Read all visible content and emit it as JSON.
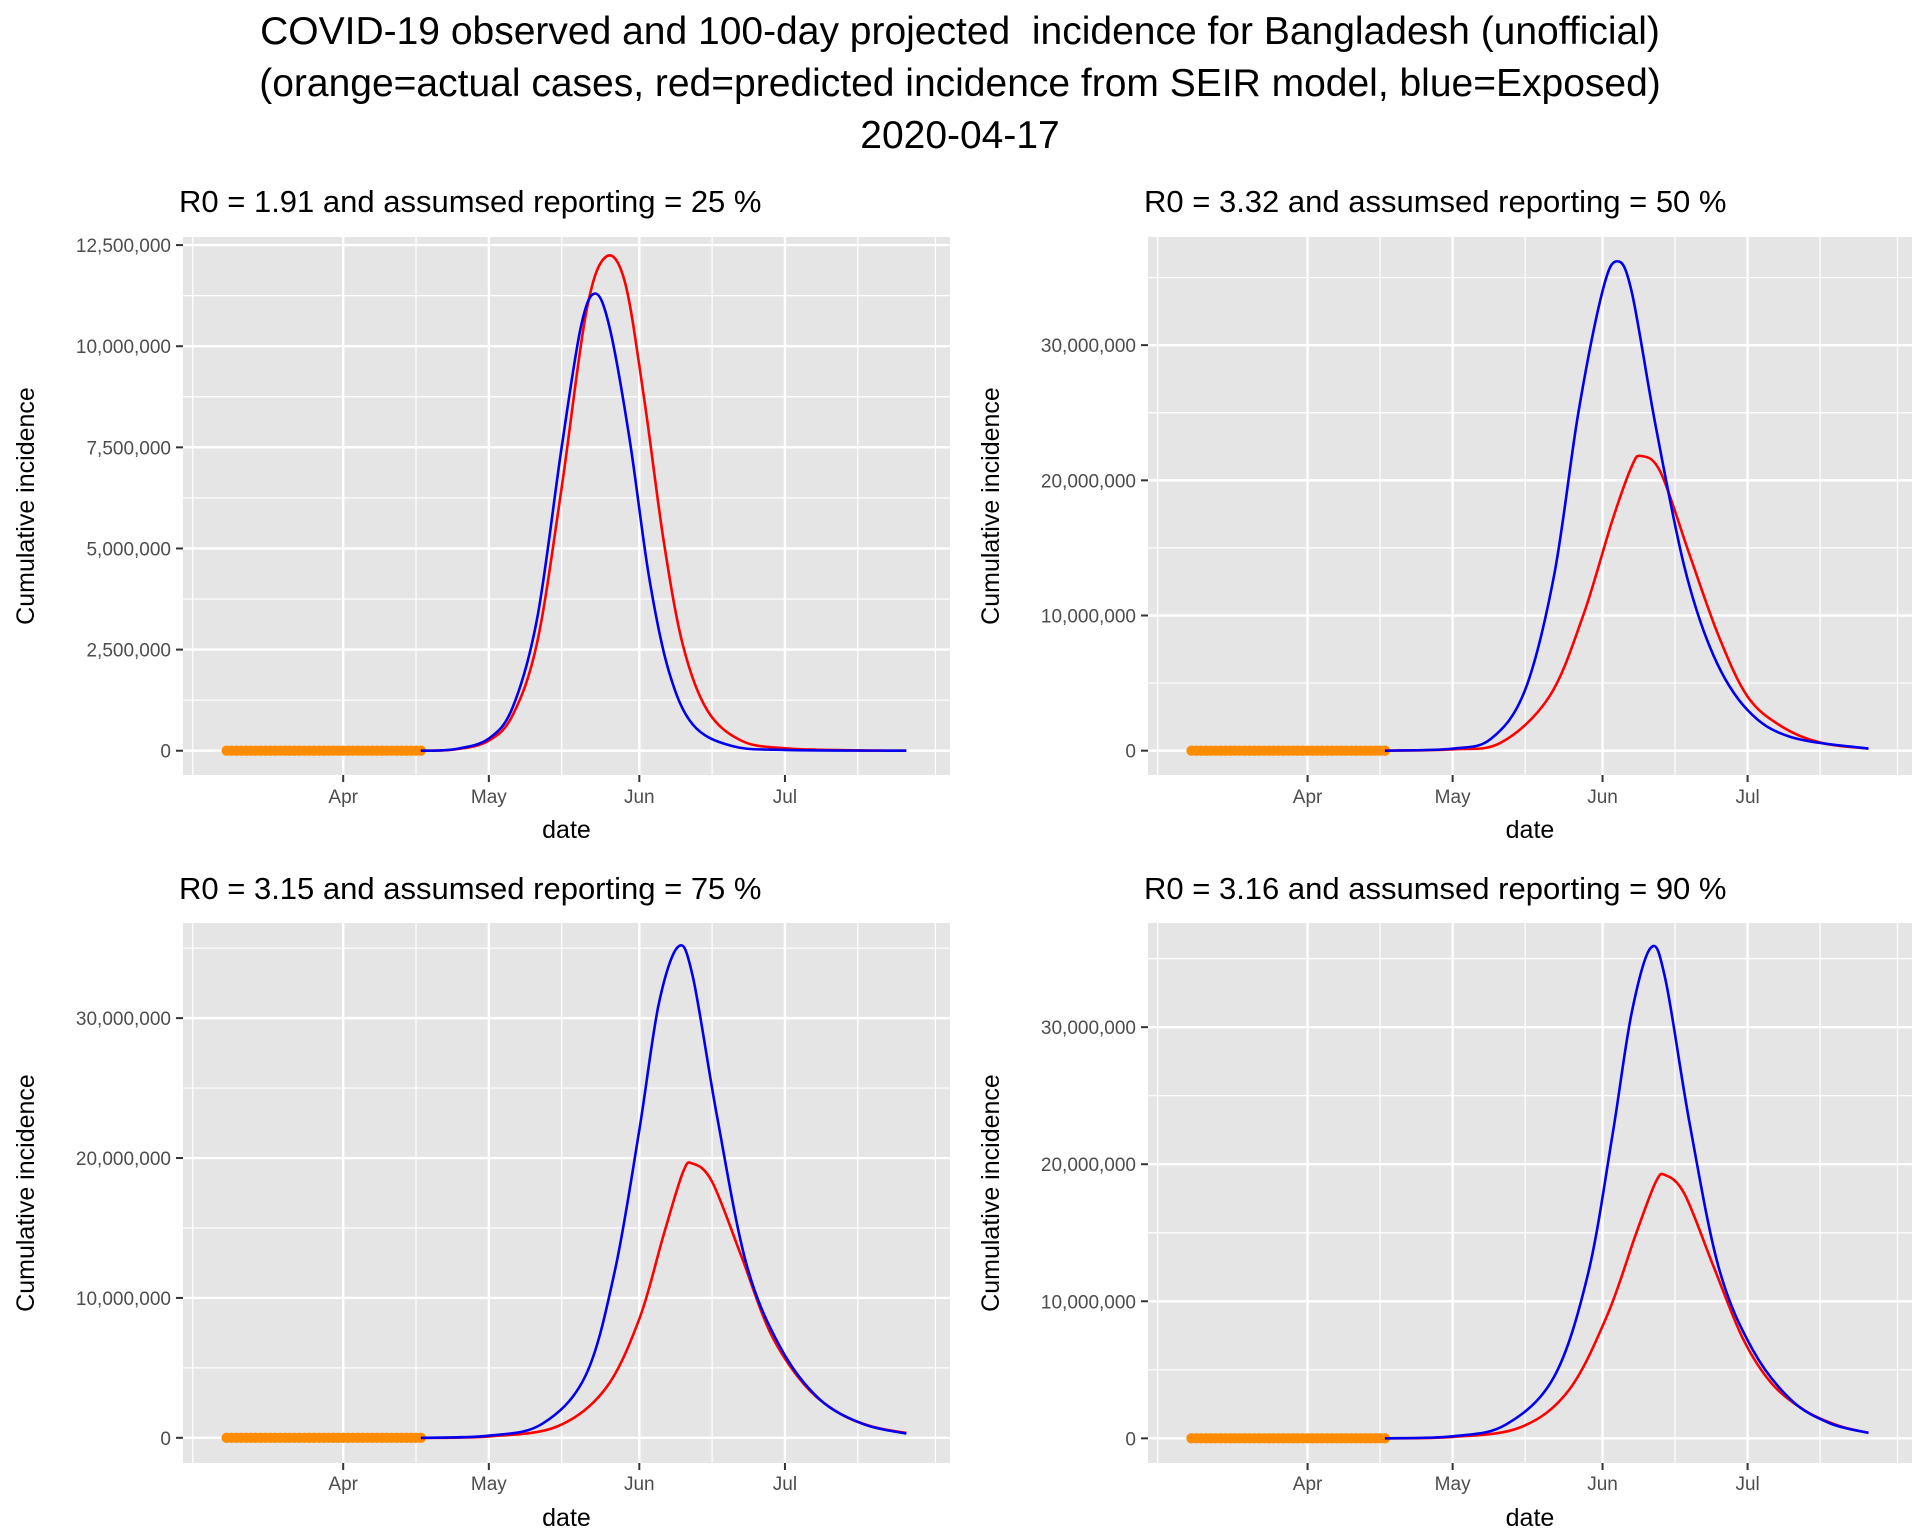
{
  "title_lines": [
    "COVID-19 observed and 100-day projected  incidence for Bangladesh (unofficial)",
    "(orange=actual cases, red=predicted incidence from SEIR model, blue=Exposed)",
    "2020-04-17"
  ],
  "colors": {
    "observed": "#FF8C00",
    "predicted": "#FF0000",
    "exposed": "#0000EE",
    "panel_bg": "#E5E5E5",
    "grid": "#FFFFFF"
  },
  "chart_data": [
    {
      "type": "line",
      "title": "R0 = 1.91 and assumsed reporting = 25 %",
      "xlabel": "date",
      "ylabel": "Cumulative incidence",
      "x_ticks": [
        "Apr",
        "May",
        "Jun",
        "Jul"
      ],
      "y_ticks": [
        "0",
        "2,500,000",
        "5,000,000",
        "7,500,000",
        "10,000,000",
        "12,500,000"
      ],
      "ylim": [
        -600000,
        12700000
      ],
      "grid": true,
      "series": [
        {
          "role": "observed",
          "x_start": "2020-03-08",
          "x_end": "2020-04-17",
          "value": 0
        },
        {
          "role": "predicted",
          "points": [
            [
              "2020-04-17",
              0
            ],
            [
              "2020-04-24",
              30000
            ],
            [
              "2020-05-01",
              250000
            ],
            [
              "2020-05-06",
              900000
            ],
            [
              "2020-05-11",
              2700000
            ],
            [
              "2020-05-16",
              6500000
            ],
            [
              "2020-05-21",
              10800000
            ],
            [
              "2020-05-25",
              12200000
            ],
            [
              "2020-05-29",
              11600000
            ],
            [
              "2020-06-02",
              8700000
            ],
            [
              "2020-06-06",
              5200000
            ],
            [
              "2020-06-10",
              2600000
            ],
            [
              "2020-06-15",
              1000000
            ],
            [
              "2020-06-22",
              250000
            ],
            [
              "2020-07-01",
              60000
            ],
            [
              "2020-07-15",
              10000
            ],
            [
              "2020-07-26",
              2000
            ]
          ]
        },
        {
          "role": "exposed",
          "points": [
            [
              "2020-04-17",
              0
            ],
            [
              "2020-04-24",
              40000
            ],
            [
              "2020-05-01",
              300000
            ],
            [
              "2020-05-06",
              1100000
            ],
            [
              "2020-05-11",
              3300000
            ],
            [
              "2020-05-16",
              7500000
            ],
            [
              "2020-05-20",
              10500000
            ],
            [
              "2020-05-23",
              11300000
            ],
            [
              "2020-05-26",
              10400000
            ],
            [
              "2020-05-30",
              7700000
            ],
            [
              "2020-06-03",
              4300000
            ],
            [
              "2020-06-07",
              2000000
            ],
            [
              "2020-06-12",
              650000
            ],
            [
              "2020-06-20",
              120000
            ],
            [
              "2020-07-01",
              20000
            ],
            [
              "2020-07-26",
              1000
            ]
          ]
        }
      ]
    },
    {
      "type": "line",
      "title": "R0 = 3.32 and assumsed reporting = 50 %",
      "xlabel": "date",
      "ylabel": "Cumulative incidence",
      "x_ticks": [
        "Apr",
        "May",
        "Jun",
        "Jul"
      ],
      "y_ticks": [
        "0",
        "10,000,000",
        "20,000,000",
        "30,000,000"
      ],
      "ylim": [
        -1800000,
        38000000
      ],
      "grid": true,
      "series": [
        {
          "role": "observed",
          "x_start": "2020-03-08",
          "x_end": "2020-04-17",
          "value": 0
        },
        {
          "role": "predicted",
          "points": [
            [
              "2020-04-17",
              0
            ],
            [
              "2020-05-01",
              100000
            ],
            [
              "2020-05-11",
              600000
            ],
            [
              "2020-05-21",
              4000000
            ],
            [
              "2020-05-28",
              10000000
            ],
            [
              "2020-06-03",
              17000000
            ],
            [
              "2020-06-07",
              21000000
            ],
            [
              "2020-06-09",
              21800000
            ],
            [
              "2020-06-13",
              20600000
            ],
            [
              "2020-06-19",
              14500000
            ],
            [
              "2020-06-25",
              8500000
            ],
            [
              "2020-07-01",
              4000000
            ],
            [
              "2020-07-08",
              1800000
            ],
            [
              "2020-07-16",
              600000
            ],
            [
              "2020-07-26",
              150000
            ]
          ]
        },
        {
          "role": "exposed",
          "points": [
            [
              "2020-04-17",
              0
            ],
            [
              "2020-05-01",
              150000
            ],
            [
              "2020-05-09",
              900000
            ],
            [
              "2020-05-16",
              4500000
            ],
            [
              "2020-05-22",
              13000000
            ],
            [
              "2020-05-27",
              25000000
            ],
            [
              "2020-06-01",
              34000000
            ],
            [
              "2020-06-04",
              36200000
            ],
            [
              "2020-06-07",
              34000000
            ],
            [
              "2020-06-12",
              24000000
            ],
            [
              "2020-06-18",
              13500000
            ],
            [
              "2020-06-24",
              7000000
            ],
            [
              "2020-07-01",
              3000000
            ],
            [
              "2020-07-10",
              1000000
            ],
            [
              "2020-07-26",
              150000
            ]
          ]
        }
      ]
    },
    {
      "type": "line",
      "title": "R0 = 3.15 and assumsed reporting = 75 %",
      "xlabel": "date",
      "ylabel": "Cumulative incidence",
      "x_ticks": [
        "Apr",
        "May",
        "Jun",
        "Jul"
      ],
      "y_ticks": [
        "0",
        "10,000,000",
        "20,000,000",
        "30,000,000"
      ],
      "ylim": [
        -1800000,
        36800000
      ],
      "grid": true,
      "series": [
        {
          "role": "observed",
          "x_start": "2020-03-08",
          "x_end": "2020-04-17",
          "value": 0
        },
        {
          "role": "predicted",
          "points": [
            [
              "2020-04-17",
              0
            ],
            [
              "2020-05-01",
              100000
            ],
            [
              "2020-05-15",
              800000
            ],
            [
              "2020-05-25",
              3500000
            ],
            [
              "2020-06-01",
              8500000
            ],
            [
              "2020-06-06",
              14500000
            ],
            [
              "2020-06-10",
              19000000
            ],
            [
              "2020-06-12",
              19600000
            ],
            [
              "2020-06-16",
              18300000
            ],
            [
              "2020-06-22",
              13000000
            ],
            [
              "2020-06-28",
              7500000
            ],
            [
              "2020-07-05",
              3800000
            ],
            [
              "2020-07-12",
              1800000
            ],
            [
              "2020-07-19",
              800000
            ],
            [
              "2020-07-26",
              350000
            ]
          ]
        },
        {
          "role": "exposed",
          "points": [
            [
              "2020-04-17",
              0
            ],
            [
              "2020-05-01",
              150000
            ],
            [
              "2020-05-12",
              1000000
            ],
            [
              "2020-05-21",
              4500000
            ],
            [
              "2020-05-27",
              12000000
            ],
            [
              "2020-06-01",
              22000000
            ],
            [
              "2020-06-05",
              31000000
            ],
            [
              "2020-06-09",
              35100000
            ],
            [
              "2020-06-12",
              33000000
            ],
            [
              "2020-06-17",
              23000000
            ],
            [
              "2020-06-23",
              12500000
            ],
            [
              "2020-06-30",
              6500000
            ],
            [
              "2020-07-08",
              2800000
            ],
            [
              "2020-07-17",
              1000000
            ],
            [
              "2020-07-26",
              300000
            ]
          ]
        }
      ]
    },
    {
      "type": "line",
      "title": "R0 = 3.16 and assumsed reporting = 90 %",
      "xlabel": "date",
      "ylabel": "Cumulative incidence",
      "x_ticks": [
        "Apr",
        "May",
        "Jun",
        "Jul"
      ],
      "y_ticks": [
        "0",
        "10,000,000",
        "20,000,000",
        "30,000,000"
      ],
      "ylim": [
        -1800000,
        37600000
      ],
      "grid": true,
      "series": [
        {
          "role": "observed",
          "x_start": "2020-03-08",
          "x_end": "2020-04-17",
          "value": 0
        },
        {
          "role": "predicted",
          "points": [
            [
              "2020-04-17",
              0
            ],
            [
              "2020-05-01",
              100000
            ],
            [
              "2020-05-15",
              800000
            ],
            [
              "2020-05-25",
              3500000
            ],
            [
              "2020-06-02",
              9000000
            ],
            [
              "2020-06-08",
              15000000
            ],
            [
              "2020-06-12",
              18700000
            ],
            [
              "2020-06-14",
              19200000
            ],
            [
              "2020-06-18",
              17800000
            ],
            [
              "2020-06-24",
              12500000
            ],
            [
              "2020-06-30",
              7300000
            ],
            [
              "2020-07-06",
              4000000
            ],
            [
              "2020-07-13",
              2000000
            ],
            [
              "2020-07-20",
              900000
            ],
            [
              "2020-07-26",
              400000
            ]
          ]
        },
        {
          "role": "exposed",
          "points": [
            [
              "2020-04-17",
              0
            ],
            [
              "2020-05-01",
              150000
            ],
            [
              "2020-05-12",
              1000000
            ],
            [
              "2020-05-22",
              4500000
            ],
            [
              "2020-05-29",
              12000000
            ],
            [
              "2020-06-03",
              22000000
            ],
            [
              "2020-06-07",
              31000000
            ],
            [
              "2020-06-11",
              35800000
            ],
            [
              "2020-06-14",
              33500000
            ],
            [
              "2020-06-19",
              23000000
            ],
            [
              "2020-06-25",
              12500000
            ],
            [
              "2020-07-02",
              6500000
            ],
            [
              "2020-07-10",
              2800000
            ],
            [
              "2020-07-18",
              1100000
            ],
            [
              "2020-07-26",
              400000
            ]
          ]
        }
      ]
    }
  ]
}
